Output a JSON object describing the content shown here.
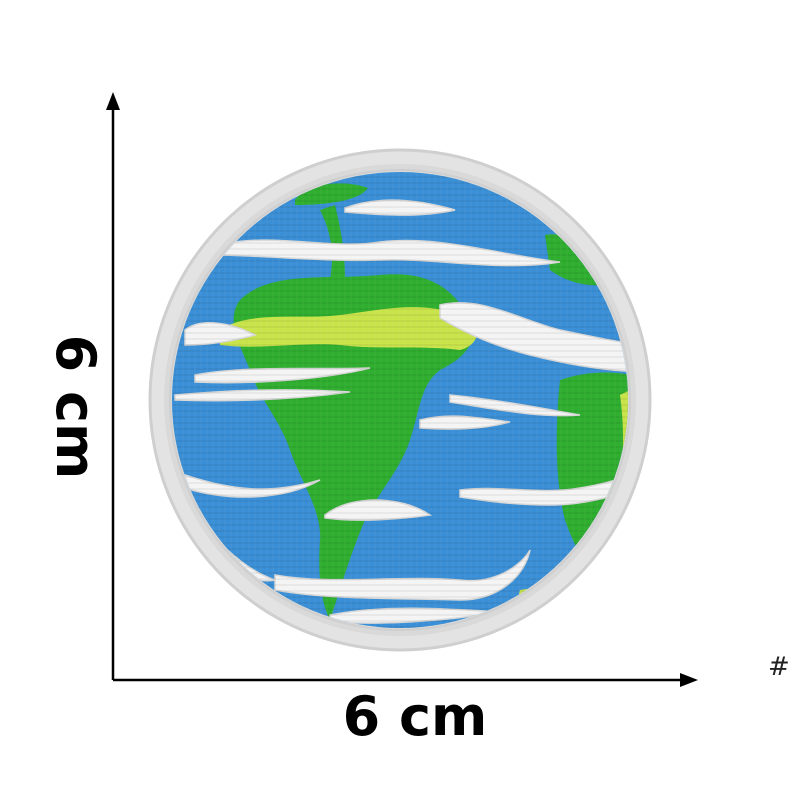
{
  "dimensions": {
    "width_label": "6 cm",
    "height_label": "6 cm"
  },
  "corner_mark": "#",
  "colors": {
    "border": "#e6e6e6",
    "ocean": "#3a8fd6",
    "land": "#2fae2f",
    "desert": "#c9e34a",
    "cloud": "#f4f4f4",
    "axis": "#000000"
  },
  "patch": {
    "icon": "earth-globe-embroidered-patch"
  }
}
